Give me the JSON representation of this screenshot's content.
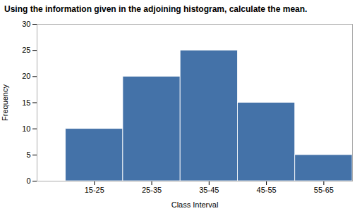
{
  "chart_data": {
    "type": "histogram",
    "title": "Using the information given in the adjoining histogram, calculate the mean.",
    "bins": [
      15,
      25,
      35,
      45,
      55,
      65
    ],
    "values": [
      10,
      20,
      25,
      15,
      5
    ],
    "color": "#4472a8",
    "xlabel": "Class Interval",
    "ylabel": "Frequency",
    "xlim": [
      10,
      65
    ],
    "xticks": [
      {
        "value": 20,
        "label": "15-25"
      },
      {
        "value": 30,
        "label": "25-35"
      },
      {
        "value": 40,
        "label": "35-45"
      },
      {
        "value": 50,
        "label": "45-55"
      },
      {
        "value": 60,
        "label": "55-65"
      }
    ],
    "ylim": [
      0,
      30
    ],
    "yticks": [
      0,
      5,
      10,
      15,
      20,
      25,
      30
    ],
    "grid": false
  }
}
